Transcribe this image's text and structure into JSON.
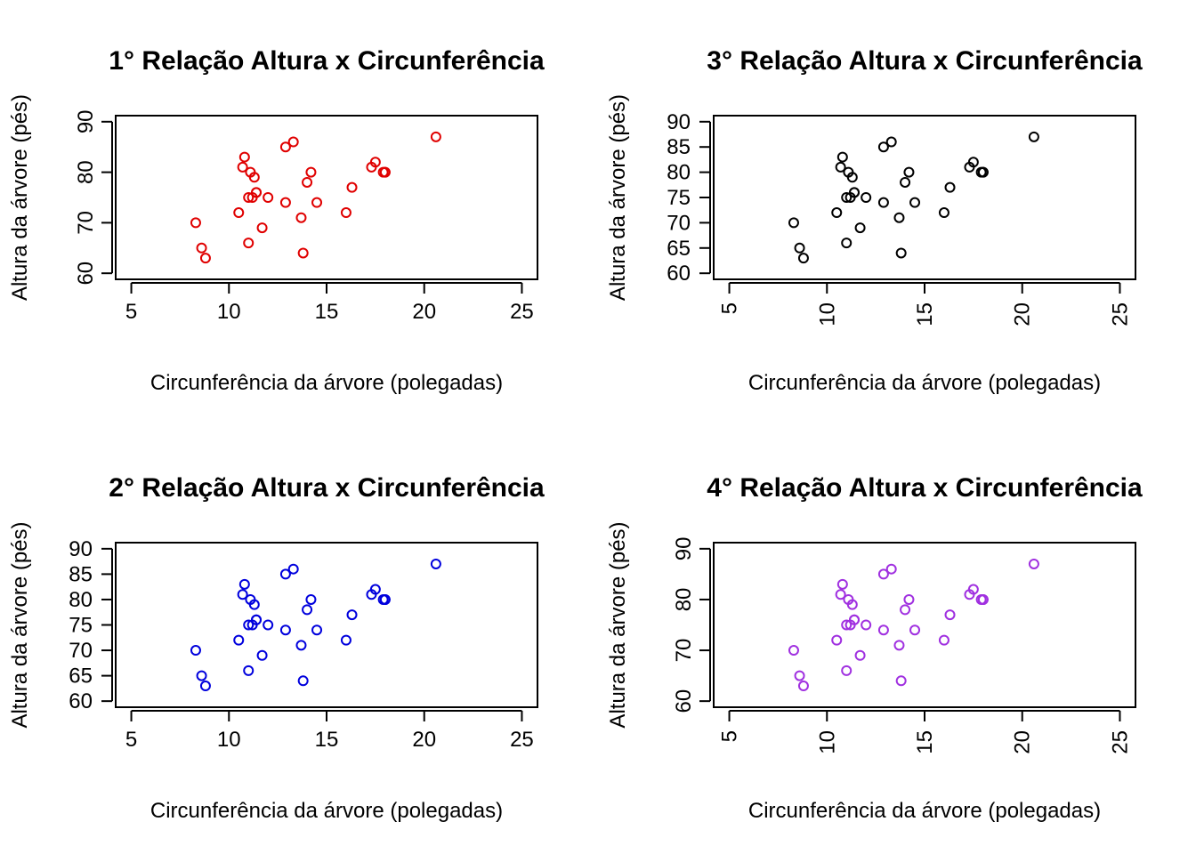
{
  "chart_data": [
    {
      "type": "scatter",
      "title": "1° Relação Altura x Circunferência",
      "xlabel": "Circunferência da árvore (polegadas)",
      "ylabel": "Altura da árvore (pés)",
      "color": "#e00000",
      "xlim": [
        5,
        25
      ],
      "ylim": [
        60,
        90
      ],
      "x_ticks": [
        5,
        10,
        15,
        20,
        25
      ],
      "y_ticks": [
        60,
        70,
        80,
        90
      ],
      "x_tick_rotation": "horizontal",
      "y_tick_rotation": "vertical",
      "points": [
        [
          8.3,
          70
        ],
        [
          8.6,
          65
        ],
        [
          8.8,
          63
        ],
        [
          10.5,
          72
        ],
        [
          10.7,
          81
        ],
        [
          10.8,
          83
        ],
        [
          11.0,
          66
        ],
        [
          11.0,
          75
        ],
        [
          11.1,
          80
        ],
        [
          11.2,
          75
        ],
        [
          11.3,
          79
        ],
        [
          11.4,
          76
        ],
        [
          11.4,
          76
        ],
        [
          11.7,
          69
        ],
        [
          12.0,
          75
        ],
        [
          12.9,
          74
        ],
        [
          12.9,
          85
        ],
        [
          13.3,
          86
        ],
        [
          13.7,
          71
        ],
        [
          13.8,
          64
        ],
        [
          14.0,
          78
        ],
        [
          14.2,
          80
        ],
        [
          14.5,
          74
        ],
        [
          16.0,
          72
        ],
        [
          16.3,
          77
        ],
        [
          17.3,
          81
        ],
        [
          17.5,
          82
        ],
        [
          17.9,
          80
        ],
        [
          18.0,
          80
        ],
        [
          18.0,
          80
        ],
        [
          20.6,
          87
        ]
      ]
    },
    {
      "type": "scatter",
      "title": "3° Relação Altura x Circunferência",
      "xlabel": "Circunferência da árvore (polegadas)",
      "ylabel": "Altura da árvore (pés)",
      "color": "#000000",
      "xlim": [
        5,
        25
      ],
      "ylim": [
        60,
        90
      ],
      "x_ticks": [
        5,
        10,
        15,
        20,
        25
      ],
      "y_ticks": [
        60,
        65,
        70,
        75,
        80,
        85,
        90
      ],
      "x_tick_rotation": "vertical",
      "y_tick_rotation": "horizontal",
      "points": [
        [
          8.3,
          70
        ],
        [
          8.6,
          65
        ],
        [
          8.8,
          63
        ],
        [
          10.5,
          72
        ],
        [
          10.7,
          81
        ],
        [
          10.8,
          83
        ],
        [
          11.0,
          66
        ],
        [
          11.0,
          75
        ],
        [
          11.1,
          80
        ],
        [
          11.2,
          75
        ],
        [
          11.3,
          79
        ],
        [
          11.4,
          76
        ],
        [
          11.4,
          76
        ],
        [
          11.7,
          69
        ],
        [
          12.0,
          75
        ],
        [
          12.9,
          74
        ],
        [
          12.9,
          85
        ],
        [
          13.3,
          86
        ],
        [
          13.7,
          71
        ],
        [
          13.8,
          64
        ],
        [
          14.0,
          78
        ],
        [
          14.2,
          80
        ],
        [
          14.5,
          74
        ],
        [
          16.0,
          72
        ],
        [
          16.3,
          77
        ],
        [
          17.3,
          81
        ],
        [
          17.5,
          82
        ],
        [
          17.9,
          80
        ],
        [
          18.0,
          80
        ],
        [
          18.0,
          80
        ],
        [
          20.6,
          87
        ]
      ]
    },
    {
      "type": "scatter",
      "title": "2° Relação Altura x Circunferência",
      "xlabel": "Circunferência da árvore (polegadas)",
      "ylabel": "Altura da árvore (pés)",
      "color": "#0000dd",
      "xlim": [
        5,
        25
      ],
      "ylim": [
        60,
        90
      ],
      "x_ticks": [
        5,
        10,
        15,
        20,
        25
      ],
      "y_ticks": [
        60,
        65,
        70,
        75,
        80,
        85,
        90
      ],
      "x_tick_rotation": "horizontal",
      "y_tick_rotation": "horizontal",
      "points": [
        [
          8.3,
          70
        ],
        [
          8.6,
          65
        ],
        [
          8.8,
          63
        ],
        [
          10.5,
          72
        ],
        [
          10.7,
          81
        ],
        [
          10.8,
          83
        ],
        [
          11.0,
          66
        ],
        [
          11.0,
          75
        ],
        [
          11.1,
          80
        ],
        [
          11.2,
          75
        ],
        [
          11.3,
          79
        ],
        [
          11.4,
          76
        ],
        [
          11.4,
          76
        ],
        [
          11.7,
          69
        ],
        [
          12.0,
          75
        ],
        [
          12.9,
          74
        ],
        [
          12.9,
          85
        ],
        [
          13.3,
          86
        ],
        [
          13.7,
          71
        ],
        [
          13.8,
          64
        ],
        [
          14.0,
          78
        ],
        [
          14.2,
          80
        ],
        [
          14.5,
          74
        ],
        [
          16.0,
          72
        ],
        [
          16.3,
          77
        ],
        [
          17.3,
          81
        ],
        [
          17.5,
          82
        ],
        [
          17.9,
          80
        ],
        [
          18.0,
          80
        ],
        [
          18.0,
          80
        ],
        [
          20.6,
          87
        ]
      ]
    },
    {
      "type": "scatter",
      "title": "4° Relação Altura x Circunferência",
      "xlabel": "Circunferência da árvore (polegadas)",
      "ylabel": "Altura da árvore (pés)",
      "color": "#a030e0",
      "xlim": [
        5,
        25
      ],
      "ylim": [
        60,
        90
      ],
      "x_ticks": [
        5,
        10,
        15,
        20,
        25
      ],
      "y_ticks": [
        60,
        70,
        80,
        90
      ],
      "x_tick_rotation": "vertical",
      "y_tick_rotation": "vertical",
      "points": [
        [
          8.3,
          70
        ],
        [
          8.6,
          65
        ],
        [
          8.8,
          63
        ],
        [
          10.5,
          72
        ],
        [
          10.7,
          81
        ],
        [
          10.8,
          83
        ],
        [
          11.0,
          66
        ],
        [
          11.0,
          75
        ],
        [
          11.1,
          80
        ],
        [
          11.2,
          75
        ],
        [
          11.3,
          79
        ],
        [
          11.4,
          76
        ],
        [
          11.4,
          76
        ],
        [
          11.7,
          69
        ],
        [
          12.0,
          75
        ],
        [
          12.9,
          74
        ],
        [
          12.9,
          85
        ],
        [
          13.3,
          86
        ],
        [
          13.7,
          71
        ],
        [
          13.8,
          64
        ],
        [
          14.0,
          78
        ],
        [
          14.2,
          80
        ],
        [
          14.5,
          74
        ],
        [
          16.0,
          72
        ],
        [
          16.3,
          77
        ],
        [
          17.3,
          81
        ],
        [
          17.5,
          82
        ],
        [
          17.9,
          80
        ],
        [
          18.0,
          80
        ],
        [
          18.0,
          80
        ],
        [
          20.6,
          87
        ]
      ]
    }
  ]
}
